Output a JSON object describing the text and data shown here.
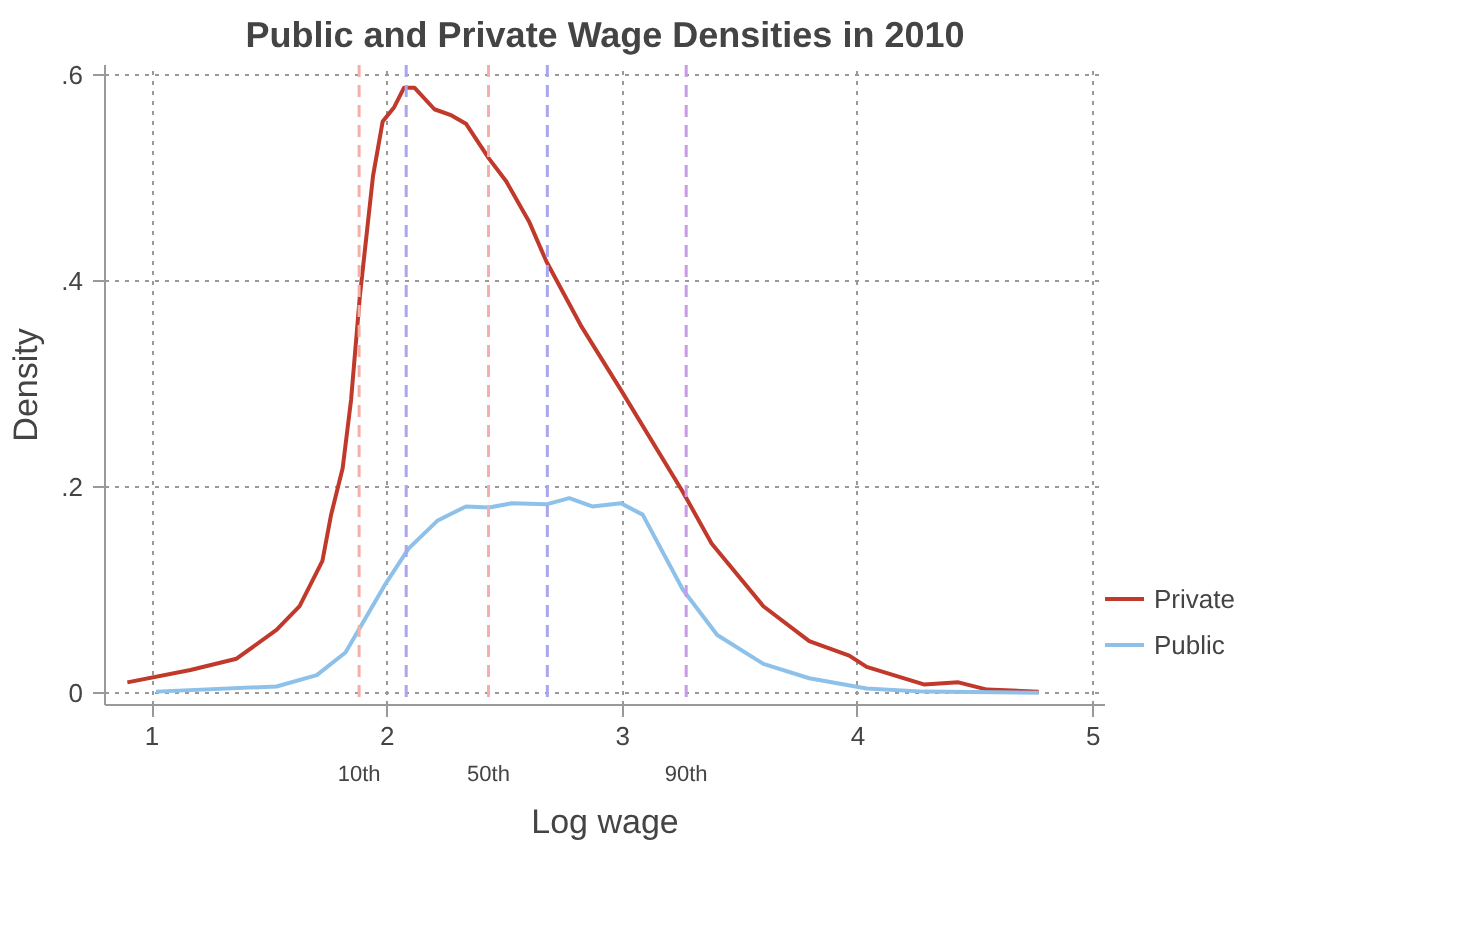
{
  "chart_data": {
    "type": "line",
    "title": "Public and Private Wage Densities in 2010",
    "xlabel": "Log wage",
    "ylabel": "Density",
    "xlim": [
      0.8,
      5.05
    ],
    "ylim": [
      -0.012,
      0.61
    ],
    "xticks": [
      1,
      2,
      3,
      4,
      5
    ],
    "yticks": [
      {
        "value": 0,
        "label": "0"
      },
      {
        "value": 0.2,
        "label": ".2"
      },
      {
        "value": 0.4,
        "label": ".4"
      },
      {
        "value": 0.6,
        "label": ".6"
      }
    ],
    "grid": true,
    "legend": "bottom right",
    "line_style": "solid",
    "ref_lines": [
      {
        "axis": "x",
        "value": 1.88,
        "color": "#f4b0a8",
        "line_style": "dashed",
        "label": "10th"
      },
      {
        "axis": "x",
        "value": 2.43,
        "color": "#f4b0a8",
        "line_style": "dashed",
        "label": "50th"
      },
      {
        "axis": "x",
        "value": 2.08,
        "color": "#a9a6ee",
        "line_style": "dashed"
      },
      {
        "axis": "x",
        "value": 2.68,
        "color": "#a9a6ee",
        "line_style": "dashed"
      },
      {
        "axis": "x",
        "value": 3.27,
        "color": "#c99be6",
        "line_style": "dashed",
        "label": "90th"
      }
    ],
    "series": [
      {
        "name": "Private",
        "color": "#c0392b",
        "x": [
          0.895,
          1.163,
          1.359,
          1.529,
          1.627,
          1.724,
          1.761,
          1.81,
          1.846,
          1.883,
          1.939,
          1.98,
          2.029,
          2.071,
          2.115,
          2.2,
          2.273,
          2.334,
          2.432,
          2.505,
          2.602,
          2.676,
          2.822,
          2.993,
          3.256,
          3.378,
          3.598,
          3.793,
          3.963,
          4.037,
          4.28,
          4.427,
          4.549,
          4.768
        ],
        "values": [
          0.01,
          0.022,
          0.033,
          0.061,
          0.084,
          0.128,
          0.173,
          0.218,
          0.285,
          0.385,
          0.502,
          0.555,
          0.569,
          0.588,
          0.588,
          0.567,
          0.561,
          0.553,
          0.519,
          0.497,
          0.458,
          0.419,
          0.357,
          0.294,
          0.195,
          0.145,
          0.084,
          0.05,
          0.036,
          0.025,
          0.008,
          0.01,
          0.003,
          0.001
        ]
      },
      {
        "name": "Public",
        "color": "#8ec1ea",
        "x": [
          1.017,
          1.529,
          1.7,
          1.822,
          1.993,
          2.09,
          2.212,
          2.334,
          2.432,
          2.529,
          2.676,
          2.773,
          2.871,
          2.993,
          3.085,
          3.256,
          3.402,
          3.598,
          3.793,
          4.037,
          4.28,
          4.768
        ],
        "values": [
          0.001,
          0.006,
          0.017,
          0.039,
          0.106,
          0.14,
          0.167,
          0.181,
          0.18,
          0.184,
          0.183,
          0.189,
          0.181,
          0.184,
          0.173,
          0.1,
          0.056,
          0.028,
          0.014,
          0.004,
          0.001,
          0
        ]
      }
    ]
  }
}
